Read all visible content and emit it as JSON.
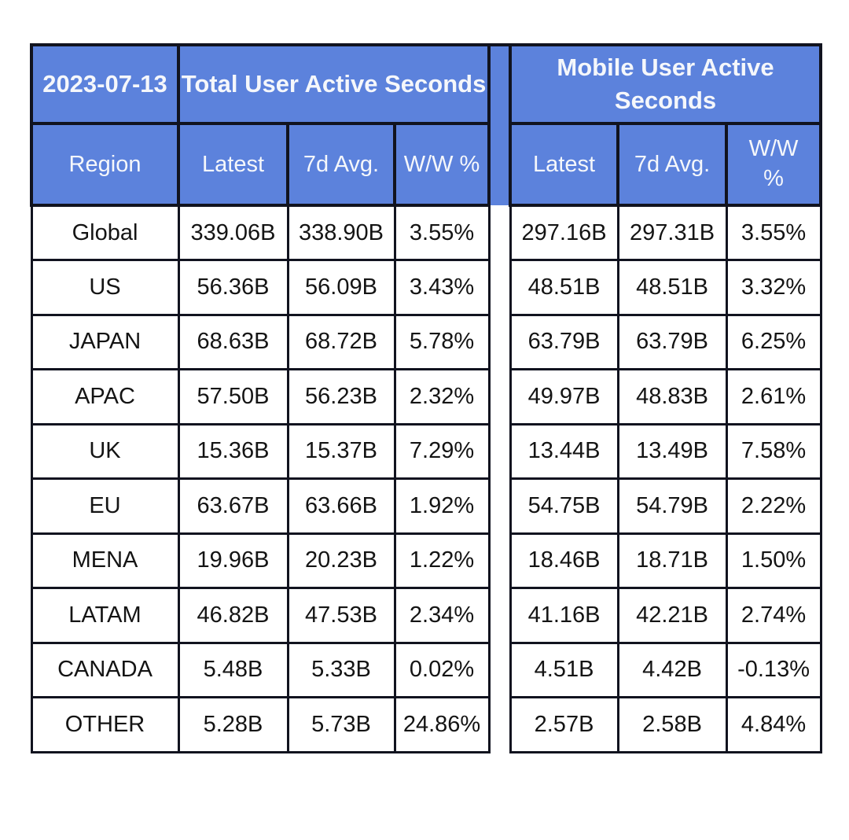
{
  "chart_data": {
    "type": "table",
    "date": "2023-07-13",
    "group_headers": [
      "Total User Active Seconds",
      "Mobile User Active Seconds"
    ],
    "columns": [
      "Region",
      "Latest",
      "7d Avg.",
      "W/W %",
      "Latest",
      "7d Avg.",
      "W/W %"
    ],
    "rows": [
      {
        "region": "Global",
        "total": [
          "339.06B",
          "338.90B",
          "3.55%"
        ],
        "mobile": [
          "297.16B",
          "297.31B",
          "3.55%"
        ]
      },
      {
        "region": "US",
        "total": [
          "56.36B",
          "56.09B",
          "3.43%"
        ],
        "mobile": [
          "48.51B",
          "48.51B",
          "3.32%"
        ]
      },
      {
        "region": "JAPAN",
        "total": [
          "68.63B",
          "68.72B",
          "5.78%"
        ],
        "mobile": [
          "63.79B",
          "63.79B",
          "6.25%"
        ]
      },
      {
        "region": "APAC",
        "total": [
          "57.50B",
          "56.23B",
          "2.32%"
        ],
        "mobile": [
          "49.97B",
          "48.83B",
          "2.61%"
        ]
      },
      {
        "region": "UK",
        "total": [
          "15.36B",
          "15.37B",
          "7.29%"
        ],
        "mobile": [
          "13.44B",
          "13.49B",
          "7.58%"
        ]
      },
      {
        "region": "EU",
        "total": [
          "63.67B",
          "63.66B",
          "1.92%"
        ],
        "mobile": [
          "54.75B",
          "54.79B",
          "2.22%"
        ]
      },
      {
        "region": "MENA",
        "total": [
          "19.96B",
          "20.23B",
          "1.22%"
        ],
        "mobile": [
          "18.46B",
          "18.71B",
          "1.50%"
        ]
      },
      {
        "region": "LATAM",
        "total": [
          "46.82B",
          "47.53B",
          "2.34%"
        ],
        "mobile": [
          "41.16B",
          "42.21B",
          "2.74%"
        ]
      },
      {
        "region": "CANADA",
        "total": [
          "5.48B",
          "5.33B",
          "0.02%"
        ],
        "mobile": [
          "4.51B",
          "4.42B",
          "-0.13%"
        ]
      },
      {
        "region": "OTHER",
        "total": [
          "5.28B",
          "5.73B",
          "24.86%"
        ],
        "mobile": [
          "2.57B",
          "2.58B",
          "4.84%"
        ]
      }
    ]
  },
  "colors": {
    "header_bg": "#5c82dc",
    "border": "#11131f",
    "header_text": "#f5f7fb",
    "cell_text": "#141414",
    "page_bg": "#ffffff"
  }
}
